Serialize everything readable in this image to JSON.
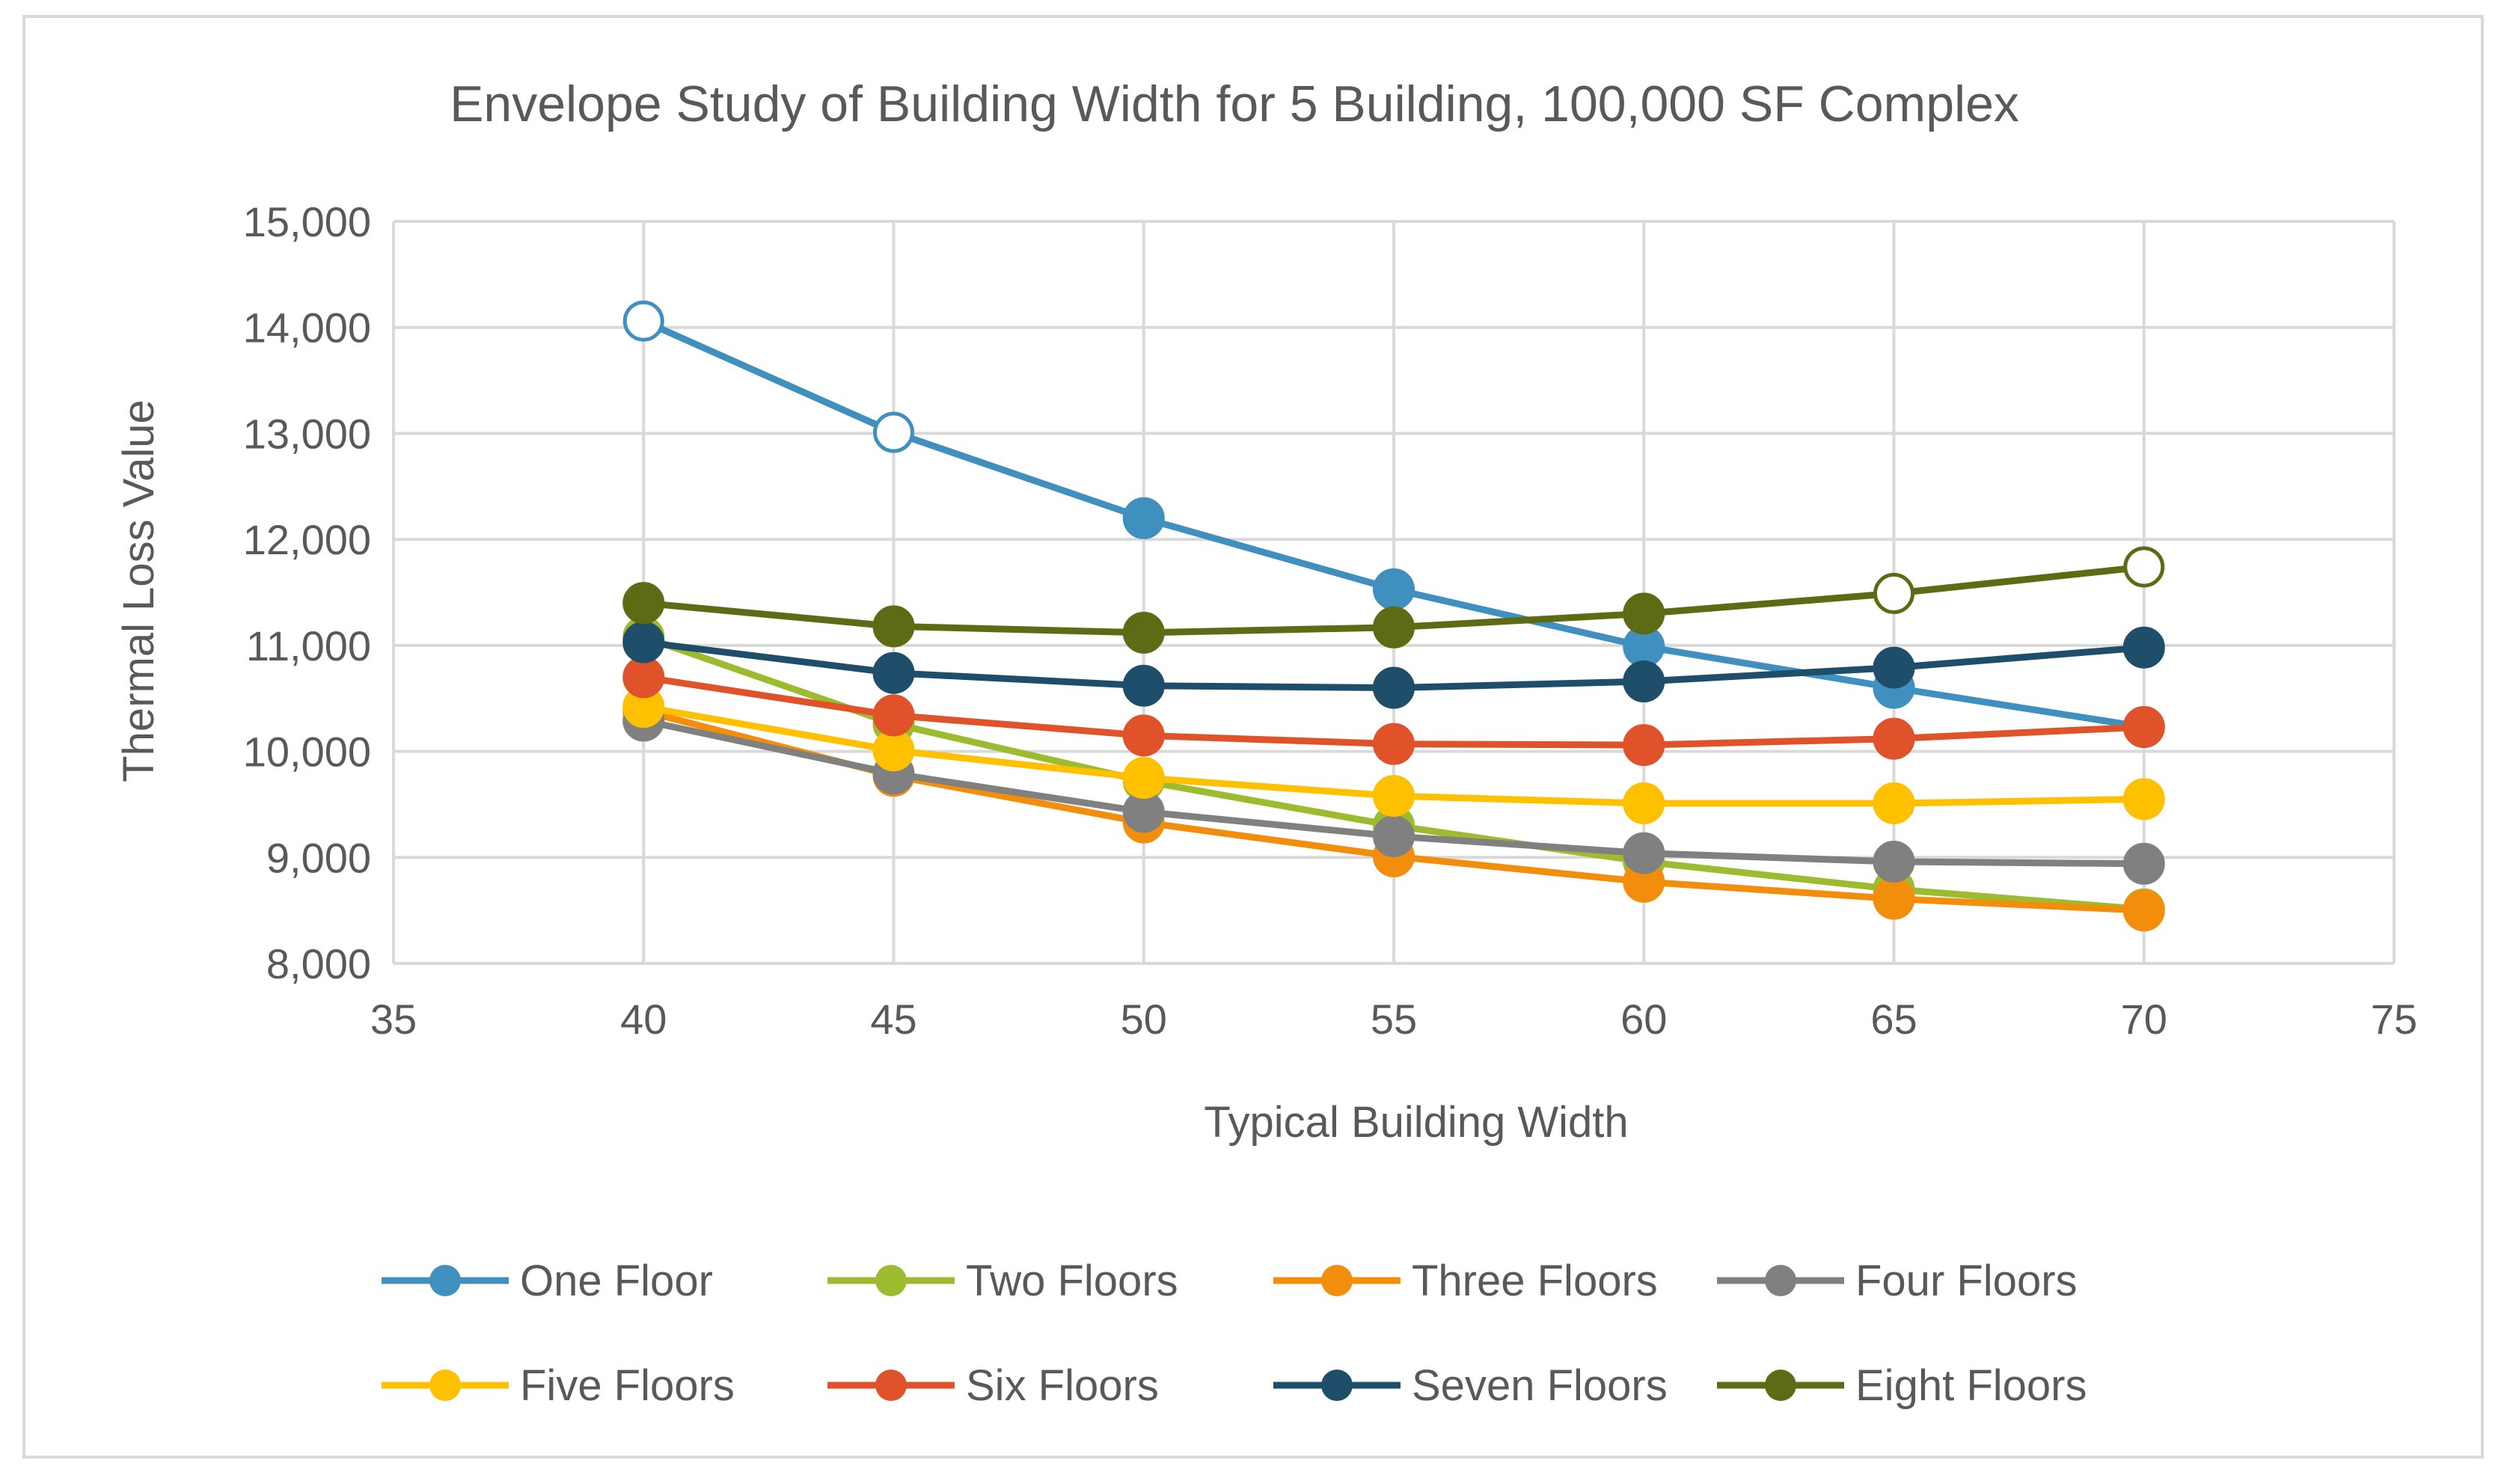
{
  "chart_data": {
    "type": "line",
    "title": "Envelope Study of Building Width for 5 Building, 100,000 SF Complex",
    "xlabel": "Typical Building Width",
    "ylabel": "Thermal Loss Value",
    "xlim": [
      35,
      75
    ],
    "ylim": [
      8000,
      15000
    ],
    "x_ticks": [
      "35",
      "40",
      "45",
      "50",
      "55",
      "60",
      "65",
      "70",
      "75"
    ],
    "y_ticks": [
      "8,000",
      "9,000",
      "10,000",
      "11,000",
      "12,000",
      "13,000",
      "14,000",
      "15,000"
    ],
    "grid": true,
    "legend_position": "bottom",
    "x": [
      40,
      45,
      50,
      55,
      60,
      65,
      70
    ],
    "series": [
      {
        "name": "One Floor",
        "color": "#4090BF",
        "values": [
          14060,
          13010,
          12200,
          11530,
          10990,
          10600,
          10230
        ],
        "hollow": [
          0,
          1
        ]
      },
      {
        "name": "Two Floors",
        "color": "#9DBB2E",
        "values": [
          11080,
          10260,
          9720,
          9300,
          8960,
          8700,
          8510
        ],
        "hollow": []
      },
      {
        "name": "Three Floors",
        "color": "#F28E0C",
        "values": [
          10380,
          9770,
          9330,
          9010,
          8770,
          8610,
          8500
        ],
        "hollow": []
      },
      {
        "name": "Four Floors",
        "color": "#808080",
        "values": [
          10290,
          9790,
          9430,
          9200,
          9040,
          8960,
          8940
        ],
        "hollow": []
      },
      {
        "name": "Five Floors",
        "color": "#FFC000",
        "values": [
          10420,
          10010,
          9750,
          9580,
          9510,
          9510,
          9550
        ],
        "hollow": []
      },
      {
        "name": "Six Floors",
        "color": "#E0522A",
        "values": [
          10700,
          10340,
          10150,
          10070,
          10060,
          10120,
          10230
        ],
        "hollow": []
      },
      {
        "name": "Seven Floors",
        "color": "#1F4E6B",
        "values": [
          11030,
          10740,
          10620,
          10600,
          10660,
          10790,
          10980
        ],
        "hollow": []
      },
      {
        "name": "Eight Floors",
        "color": "#5E6B15",
        "values": [
          11400,
          11180,
          11120,
          11170,
          11300,
          11490,
          11740
        ],
        "hollow": [
          5,
          6
        ]
      }
    ]
  }
}
